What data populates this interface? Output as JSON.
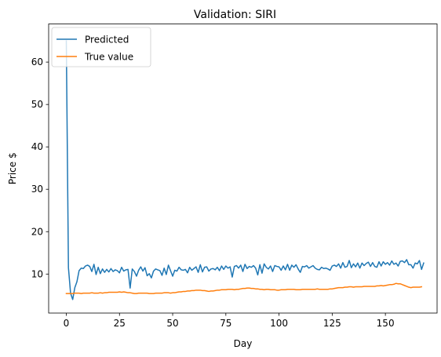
{
  "chart_data": {
    "type": "line",
    "title": "Validation: SIRI",
    "xlabel": "Day",
    "ylabel": "Price $",
    "xlim": [
      -8.3,
      174.3
    ],
    "ylim": [
      0.8,
      69.0
    ],
    "xticks": [
      0,
      25,
      50,
      75,
      100,
      125,
      150
    ],
    "yticks": [
      10,
      20,
      30,
      40,
      50,
      60
    ],
    "grid": false,
    "legend_position": "top-left",
    "series": [
      {
        "name": "Predicted",
        "color": "#1f77b4",
        "values": [
          65.0,
          11.5,
          5.5,
          4.0,
          6.8,
          8.2,
          10.8,
          11.4,
          11.3,
          11.9,
          12.1,
          11.8,
          10.6,
          12.3,
          9.9,
          11.6,
          10.1,
          11.2,
          10.4,
          11.1,
          10.5,
          11.3,
          10.6,
          11.0,
          10.8,
          10.3,
          11.6,
          10.7,
          11.0,
          11.1,
          6.7,
          11.2,
          10.6,
          9.5,
          10.9,
          11.7,
          10.7,
          11.5,
          9.6,
          10.1,
          9.1,
          10.7,
          11.2,
          11.0,
          10.8,
          9.7,
          11.4,
          9.9,
          12.1,
          10.8,
          9.5,
          10.9,
          10.7,
          11.6,
          11.0,
          10.9,
          11.1,
          10.3,
          11.6,
          10.9,
          11.3,
          11.7,
          10.4,
          12.2,
          10.5,
          11.6,
          11.7,
          10.7,
          11.2,
          11.3,
          11.0,
          11.6,
          10.8,
          11.9,
          11.1,
          11.9,
          11.4,
          11.7,
          9.3,
          11.8,
          12.0,
          11.4,
          12.1,
          10.6,
          12.3,
          11.3,
          11.8,
          11.6,
          12.0,
          11.4,
          9.8,
          12.2,
          10.2,
          12.4,
          11.6,
          11.2,
          11.9,
          10.6,
          12.0,
          11.8,
          11.7,
          10.9,
          11.9,
          11.0,
          12.3,
          10.9,
          12.1,
          11.6,
          12.2,
          11.2,
          10.4,
          11.8,
          11.7,
          12.0,
          11.4,
          11.7,
          12.0,
          11.4,
          11.1,
          11.0,
          11.6,
          11.3,
          11.4,
          11.2,
          10.9,
          11.9,
          12.1,
          11.8,
          12.4,
          11.4,
          12.7,
          11.6,
          11.8,
          13.2,
          11.5,
          12.4,
          11.7,
          12.6,
          11.4,
          12.6,
          12.0,
          12.5,
          12.8,
          11.8,
          12.7,
          11.8,
          11.6,
          12.9,
          11.9,
          12.9,
          12.3,
          12.7,
          12.1,
          13.1,
          12.3,
          12.6,
          11.9,
          13.0,
          13.1,
          12.7,
          13.4,
          12.2,
          12.2,
          11.4,
          12.6,
          12.4,
          13.2,
          11.1,
          12.6
        ]
      },
      {
        "name": "True value",
        "color": "#ff7f0e",
        "values": [
          5.4,
          5.4,
          5.4,
          5.4,
          5.5,
          5.5,
          5.5,
          5.4,
          5.5,
          5.5,
          5.5,
          5.5,
          5.6,
          5.5,
          5.5,
          5.5,
          5.6,
          5.5,
          5.6,
          5.6,
          5.7,
          5.7,
          5.7,
          5.7,
          5.7,
          5.8,
          5.7,
          5.8,
          5.7,
          5.6,
          5.6,
          5.5,
          5.4,
          5.4,
          5.5,
          5.5,
          5.5,
          5.5,
          5.5,
          5.4,
          5.4,
          5.4,
          5.5,
          5.5,
          5.5,
          5.5,
          5.6,
          5.6,
          5.6,
          5.5,
          5.6,
          5.6,
          5.7,
          5.8,
          5.8,
          5.9,
          5.9,
          6.0,
          6.0,
          6.1,
          6.1,
          6.2,
          6.2,
          6.2,
          6.1,
          6.1,
          6.0,
          5.9,
          6.0,
          6.0,
          6.1,
          6.2,
          6.2,
          6.3,
          6.3,
          6.3,
          6.4,
          6.4,
          6.4,
          6.3,
          6.4,
          6.4,
          6.5,
          6.6,
          6.6,
          6.7,
          6.7,
          6.6,
          6.6,
          6.5,
          6.5,
          6.4,
          6.4,
          6.3,
          6.4,
          6.4,
          6.3,
          6.3,
          6.3,
          6.2,
          6.2,
          6.3,
          6.3,
          6.3,
          6.4,
          6.4,
          6.4,
          6.4,
          6.3,
          6.3,
          6.3,
          6.4,
          6.4,
          6.4,
          6.4,
          6.4,
          6.4,
          6.4,
          6.5,
          6.4,
          6.4,
          6.4,
          6.4,
          6.4,
          6.5,
          6.5,
          6.6,
          6.7,
          6.8,
          6.8,
          6.8,
          6.9,
          6.9,
          7.0,
          7.0,
          6.9,
          7.0,
          7.0,
          7.0,
          7.0,
          7.1,
          7.1,
          7.1,
          7.1,
          7.1,
          7.1,
          7.2,
          7.2,
          7.3,
          7.2,
          7.3,
          7.4,
          7.5,
          7.5,
          7.6,
          7.8,
          7.7,
          7.7,
          7.5,
          7.3,
          7.1,
          6.9,
          6.8,
          6.9,
          6.9,
          6.9,
          6.9,
          7.0
        ]
      }
    ]
  }
}
